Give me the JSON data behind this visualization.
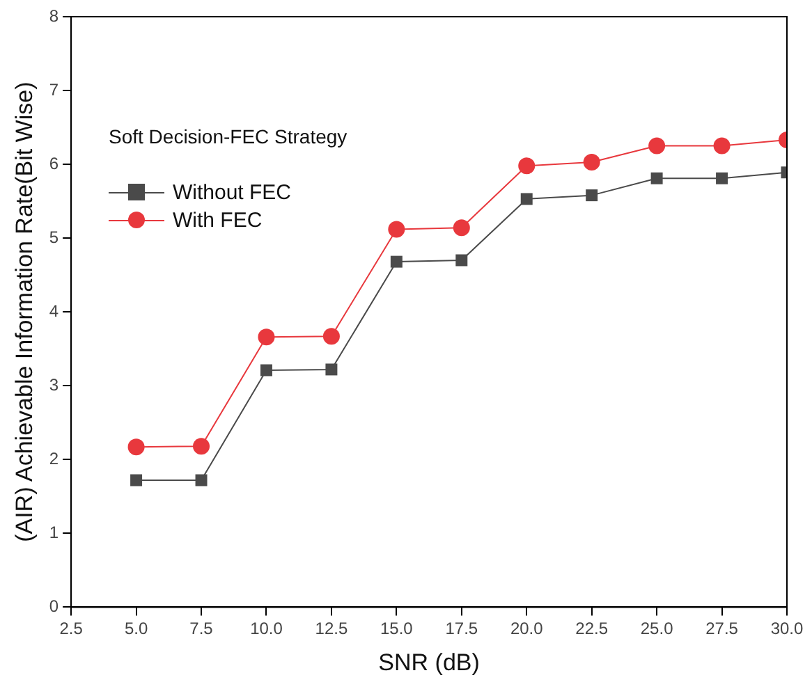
{
  "chart_data": {
    "type": "line",
    "xlabel": "SNR (dB)",
    "ylabel": "(AIR) Achievable Information Rate(Bit Wise)",
    "legend_title": "Soft Decision-FEC Strategy",
    "legend": "top left",
    "grid": false,
    "x": [
      5,
      7.5,
      10,
      12.5,
      15,
      17.5,
      20,
      22.5,
      25,
      27.5,
      30
    ],
    "xlim": [
      2.5,
      30
    ],
    "xticks": [
      2.5,
      {
        "value": 5,
        "label": "5.0"
      },
      7.5,
      {
        "value": 10,
        "label": "10.0"
      },
      12.5,
      {
        "value": 15,
        "label": "15.0"
      },
      17.5,
      {
        "value": 20,
        "label": "20.0"
      },
      22.5,
      {
        "value": 25,
        "label": "25.0"
      },
      27.5,
      {
        "value": 30,
        "label": "30.0"
      }
    ],
    "ylim": [
      0,
      8
    ],
    "yticks": [
      0,
      1,
      2,
      3,
      4,
      5,
      6,
      7,
      8
    ],
    "series": [
      {
        "name": "Without FEC",
        "color": "#4a4a4a",
        "marker": "square",
        "values": [
          1.72,
          1.72,
          3.21,
          3.22,
          4.68,
          4.7,
          5.53,
          5.58,
          5.81,
          5.81,
          5.89
        ]
      },
      {
        "name": "With FEC",
        "color": "#e8383d",
        "marker": "circle",
        "values": [
          2.17,
          2.18,
          3.66,
          3.67,
          5.12,
          5.14,
          5.98,
          6.03,
          6.25,
          6.25,
          6.33
        ]
      }
    ]
  }
}
